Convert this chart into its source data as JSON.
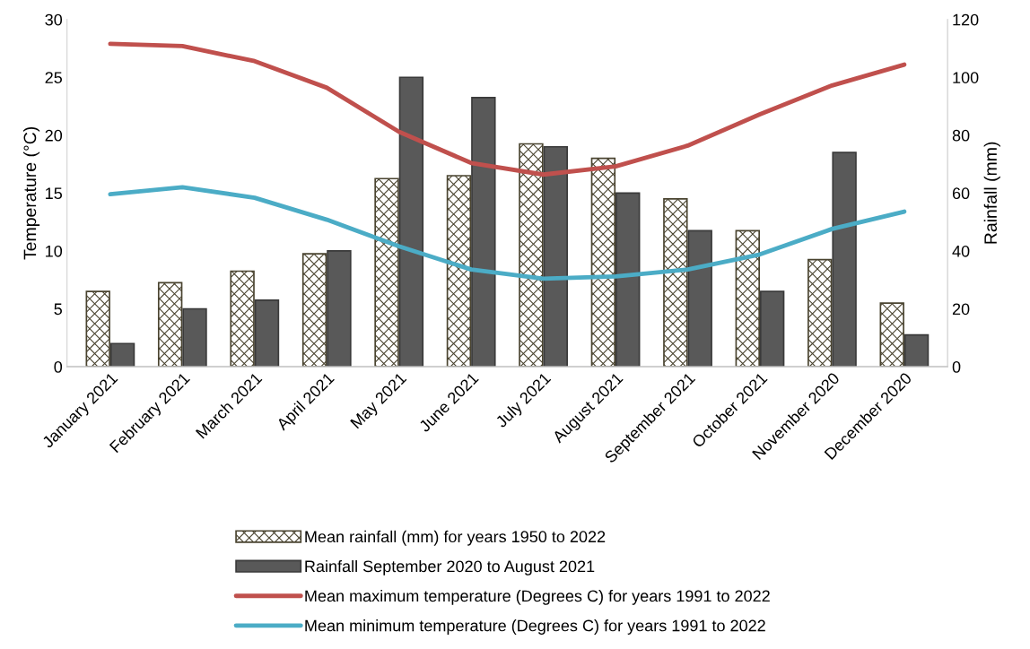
{
  "chart_data": {
    "type": "bar",
    "ylabel": "Temperature (°C)",
    "y2label": "Rainfall (mm)",
    "categories": [
      "January 2021",
      "February 2021",
      "March 2021",
      "April 2021",
      "May 2021",
      "June 2021",
      "July 2021",
      "August 2021",
      "September 2021",
      "October 2021",
      "November 2020",
      "December 2020"
    ],
    "series": [
      {
        "name": "Mean rainfall (mm) for years 1950 to 2022",
        "axis": "y2",
        "color": "#4a4430",
        "values": [
          26,
          29,
          33,
          39,
          65,
          66,
          77,
          72,
          58,
          47,
          37,
          22
        ]
      },
      {
        "name": "Rainfall September 2020 to August 2021",
        "axis": "y2",
        "color": "#595959",
        "values": [
          8,
          20,
          23,
          40,
          100,
          93,
          76,
          60,
          47,
          26,
          74,
          11
        ]
      },
      {
        "name": "Mean maximum temperature (Degrees C) for years 1991 to 2022",
        "type": "line",
        "axis": "y",
        "color": "#c0504d",
        "values": [
          27.9,
          27.7,
          26.4,
          24.1,
          20.3,
          17.6,
          16.6,
          17.3,
          19.1,
          21.8,
          24.3,
          26.1
        ]
      },
      {
        "name": "Mean minimum temperature (Degrees C) for years 1991 to 2022",
        "type": "line",
        "axis": "y",
        "color": "#4bacc6",
        "values": [
          14.9,
          15.5,
          14.6,
          12.7,
          10.4,
          8.4,
          7.6,
          7.8,
          8.4,
          9.7,
          11.9,
          13.4
        ]
      }
    ],
    "ylim": [
      0,
      30
    ],
    "yticks": [
      0,
      5,
      10,
      15,
      20,
      25,
      30
    ],
    "y2lim": [
      0,
      120
    ],
    "y2ticks": [
      0,
      20,
      40,
      60,
      80,
      100,
      120
    ],
    "grid": false,
    "legend": "bottom",
    "marker": "none",
    "line_style": "solid"
  }
}
